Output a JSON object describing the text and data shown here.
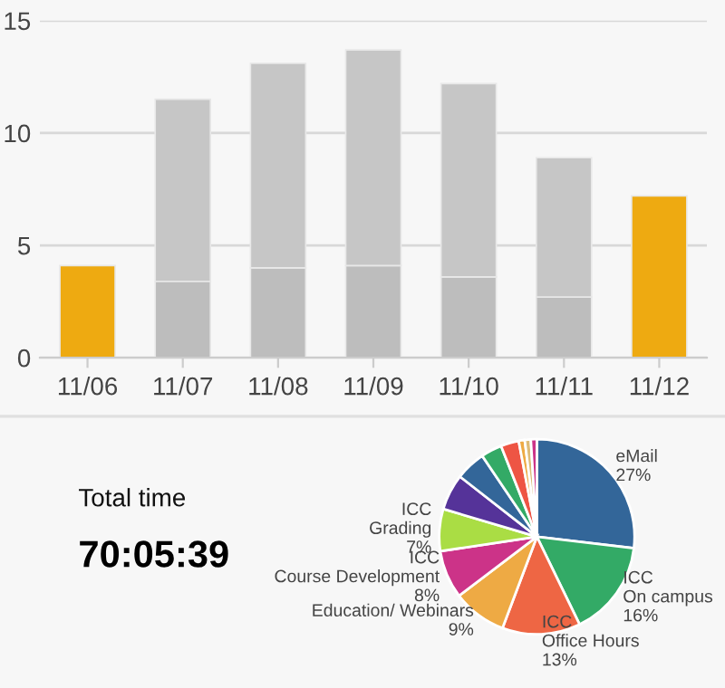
{
  "chart_data": [
    {
      "type": "bar",
      "stacked": true,
      "categories": [
        "11/06",
        "11/07",
        "11/08",
        "11/09",
        "11/10",
        "11/11",
        "11/12"
      ],
      "series": [
        {
          "colors": [
            "#eeaa11",
            "#bdbdbd",
            "#bdbdbd",
            "#bdbdbd",
            "#bdbdbd",
            "#bdbdbd",
            "#eeaa11"
          ],
          "values": [
            4.1,
            3.4,
            4.0,
            4.1,
            3.6,
            2.7,
            7.2
          ]
        },
        {
          "color": "#c6c6c6",
          "values": [
            null,
            8.1,
            9.1,
            9.6,
            8.6,
            6.2,
            null
          ]
        }
      ],
      "ylim": [
        0,
        15
      ],
      "yticks": [
        0,
        5,
        10,
        15
      ],
      "grid": "y",
      "legend": false
    },
    {
      "type": "other",
      "title": "Total time",
      "annotations": [
        "70:05:39"
      ]
    },
    {
      "type": "pie",
      "categories": [
        "eMail",
        "ICC\nOn campus",
        "ICC\nOffice Hours",
        "Education/ Webinars",
        "ICC\nCourse Development",
        "ICC\nGrading",
        null,
        null,
        null,
        null,
        null,
        null,
        null
      ],
      "values": [
        27,
        16,
        13,
        9,
        8,
        7,
        6,
        5,
        3.5,
        3,
        1,
        1,
        1
      ],
      "value_labels": [
        "27%",
        "16%",
        "13%",
        "9%",
        "8%",
        "7%",
        null,
        null,
        null,
        null,
        null,
        null,
        null
      ],
      "colors": [
        "#336699",
        "#33aa66",
        "#ee6644",
        "#eeaa44",
        "#cc3388",
        "#aadd44",
        "#553399",
        "#336699",
        "#33aa66",
        "#ee5544",
        "#eeaa44",
        "#ddbb77",
        "#cc3388"
      ]
    }
  ]
}
